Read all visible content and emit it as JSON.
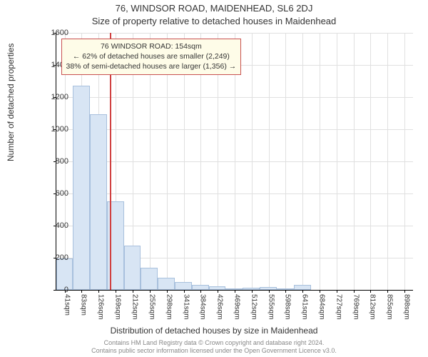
{
  "supertitle": "76, WINDSOR ROAD, MAIDENHEAD, SL6 2DJ",
  "title": "Size of property relative to detached houses in Maidenhead",
  "histogram": {
    "type": "histogram",
    "xlim": [
      20,
      919
    ],
    "ylim": [
      0,
      1600
    ],
    "ytick_step": 200,
    "yticks": [
      0,
      200,
      400,
      600,
      800,
      1000,
      1200,
      1400,
      1600
    ],
    "xticks": [
      41,
      83,
      126,
      169,
      212,
      255,
      298,
      341,
      384,
      426,
      469,
      512,
      555,
      598,
      641,
      684,
      727,
      769,
      812,
      855,
      898
    ],
    "xtick_suffix": "sqm",
    "bar_edges": [
      20,
      62,
      104,
      147,
      190,
      233,
      276,
      319,
      362,
      405,
      447,
      490,
      533,
      576,
      619,
      662,
      705,
      748,
      790,
      833,
      876,
      919
    ],
    "values": [
      195,
      1270,
      1095,
      550,
      275,
      138,
      75,
      48,
      30,
      22,
      10,
      13,
      18,
      8,
      30,
      0,
      0,
      0,
      0,
      0,
      0
    ],
    "bar_fill": "#d8e5f4",
    "bar_stroke": "#a8c0dd",
    "grid_color": "#e0e0e0",
    "background_color": "#ffffff",
    "marker_line": {
      "x": 154,
      "color": "#d04040"
    },
    "annotation": {
      "line1": "76 WINDSOR ROAD: 154sqm",
      "line2": "← 62% of detached houses are smaller (2,249)",
      "line3": "38% of semi-detached houses are larger (1,356) →",
      "bg": "#fefce8",
      "border": "#c85050"
    }
  },
  "ylabel": "Number of detached properties",
  "xlabel": "Distribution of detached houses by size in Maidenhead",
  "footer": {
    "line1": "Contains HM Land Registry data © Crown copyright and database right 2024.",
    "line2": "Contains public sector information licensed under the Open Government Licence v3.0."
  }
}
